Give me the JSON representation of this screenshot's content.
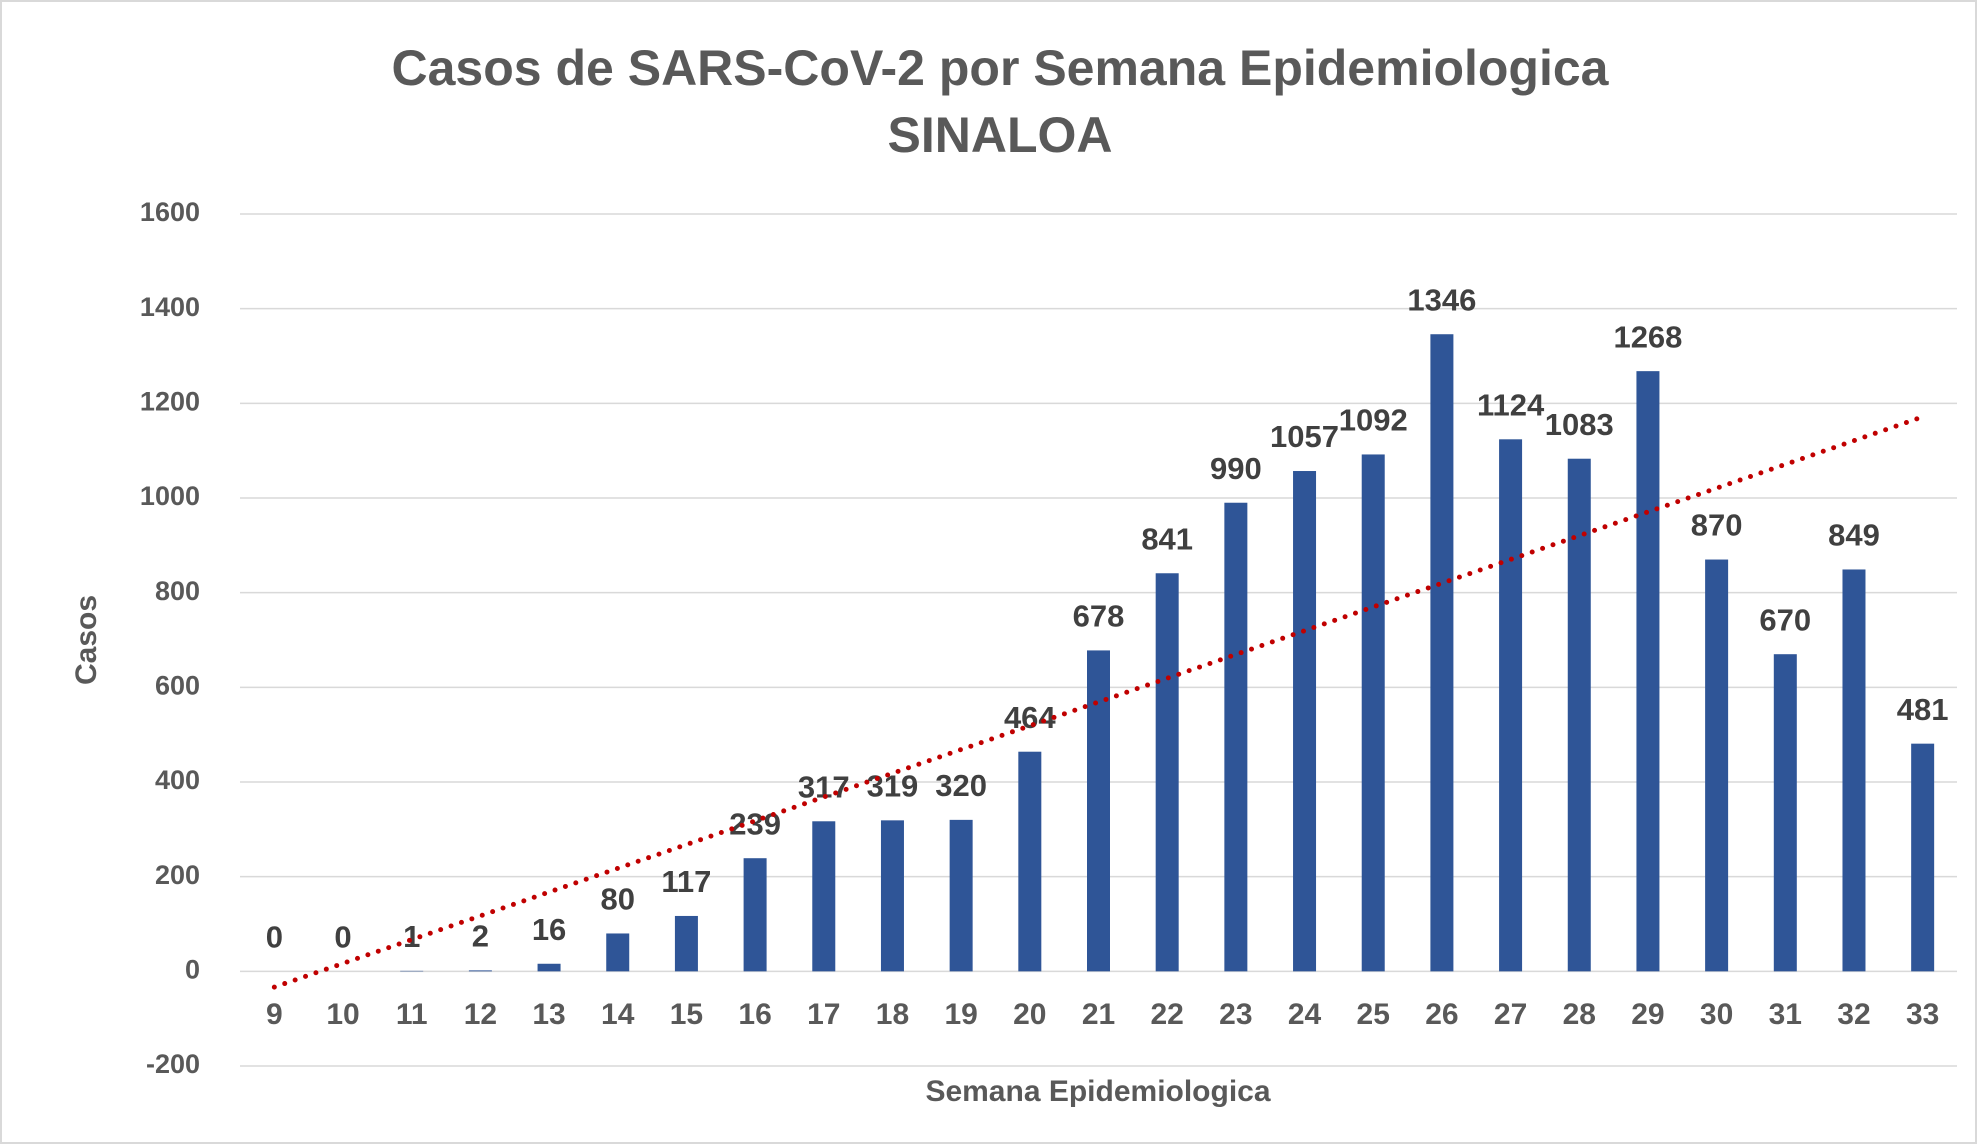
{
  "chart_data": {
    "type": "bar",
    "title": [
      "Casos de SARS-CoV-2 por Semana Epidemiologica",
      "SINALOA"
    ],
    "x_label": "Semana Epidemiologica",
    "y_label": "Casos",
    "categories": [
      "9",
      "10",
      "11",
      "12",
      "13",
      "14",
      "15",
      "16",
      "17",
      "18",
      "19",
      "20",
      "21",
      "22",
      "23",
      "24",
      "25",
      "26",
      "27",
      "28",
      "29",
      "30",
      "31",
      "32",
      "33"
    ],
    "values": [
      0,
      0,
      1,
      2,
      16,
      80,
      117,
      239,
      317,
      319,
      320,
      464,
      678,
      841,
      990,
      1057,
      1092,
      1346,
      1124,
      1083,
      1268,
      870,
      670,
      849,
      481
    ],
    "color": "#2f5597",
    "ylim": [
      -200,
      1600
    ],
    "yticks": [
      -200,
      0,
      200,
      400,
      600,
      800,
      1000,
      1200,
      1400,
      1600
    ],
    "grid": true,
    "data_labels": true,
    "trendline": {
      "type": "linear",
      "color": "#c00000"
    }
  }
}
